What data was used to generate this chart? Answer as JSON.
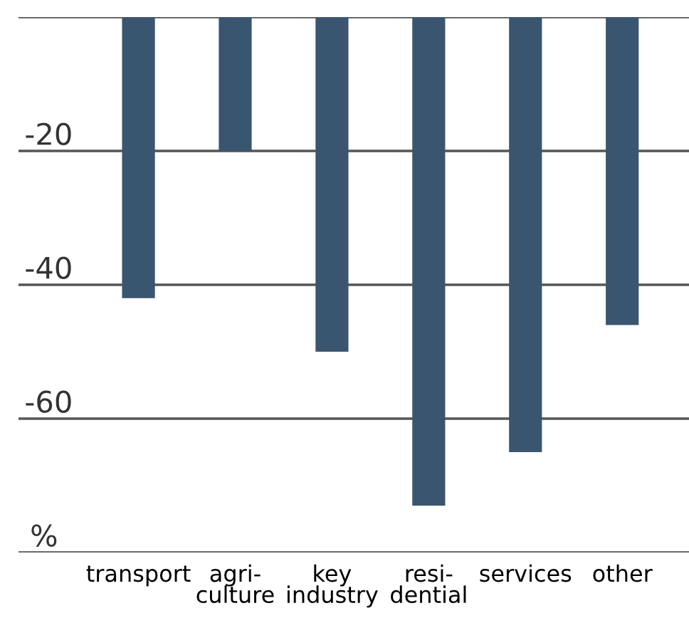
{
  "chart_data": {
    "type": "bar",
    "categories": [
      "transport",
      "agri-\nculture",
      "key\nindustry",
      "resi-\ndential",
      "services",
      "other"
    ],
    "series": [
      {
        "color": "#3a556f",
        "values": [
          -42,
          -20,
          -50,
          -73,
          -65,
          -46
        ]
      }
    ],
    "ylabel": "%",
    "ylim": [
      -80,
      0
    ],
    "yticks": [
      {
        "value": 0,
        "label": null
      },
      -20,
      -40,
      -60,
      {
        "value": -80,
        "label": null
      }
    ],
    "grid": "y"
  }
}
